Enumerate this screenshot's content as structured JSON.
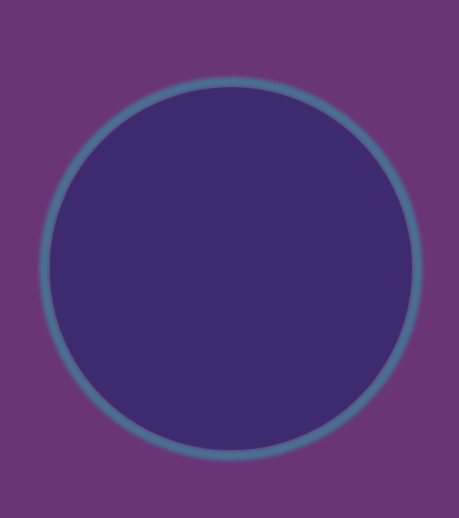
{
  "chart_data": {
    "type": "pie",
    "title_lines": [],
    "slices": [],
    "source_lines": [],
    "colors": {
      "background": "#6a3479",
      "pie_rim": "#2fa3a6",
      "glow": "#5fd38f"
    }
  }
}
